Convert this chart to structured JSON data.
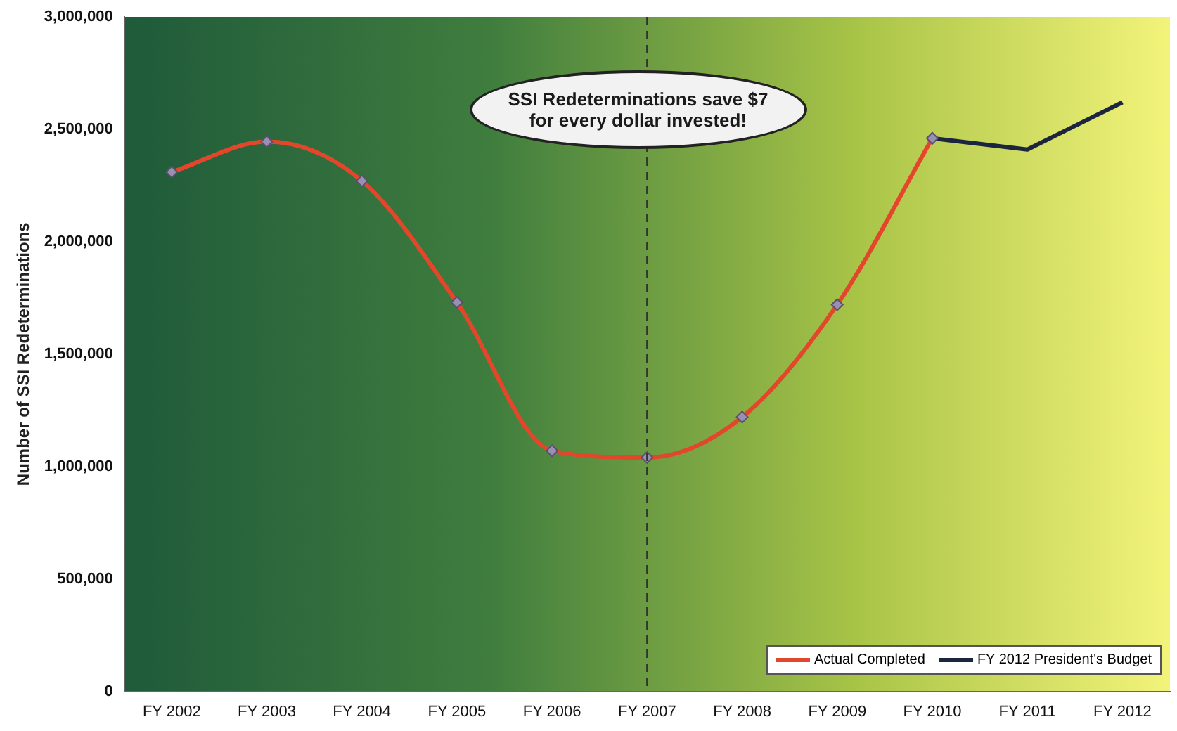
{
  "chart_data": {
    "type": "line",
    "ylabel": "Number of SSI Redeterminations",
    "categories": [
      "FY 2002",
      "FY 2003",
      "FY 2004",
      "FY 2005",
      "FY 2006",
      "FY 2007",
      "FY 2008",
      "FY 2009",
      "FY 2010",
      "FY 2011",
      "FY 2012"
    ],
    "series": [
      {
        "name": "Actual Completed",
        "color": "#e2472b",
        "marker": "diamond",
        "values": [
          2310000,
          2445000,
          2270000,
          1730000,
          1070000,
          1040000,
          1220000,
          1720000,
          2460000,
          null,
          null
        ]
      },
      {
        "name": "FY 2012 President's Budget",
        "color": "#1c2540",
        "marker": "none",
        "values": [
          null,
          null,
          null,
          null,
          null,
          null,
          null,
          null,
          2460000,
          2410000,
          2620000
        ]
      }
    ],
    "ylim": [
      0,
      3000000
    ],
    "yticks": [
      0,
      {
        "value": 500000,
        "label": "500,000"
      },
      {
        "value": 1000000,
        "label": "1,000,000"
      },
      {
        "value": 1500000,
        "label": "1,500,000"
      },
      {
        "value": 2000000,
        "label": "2,000,000"
      },
      {
        "value": 2500000,
        "label": "2,500,000"
      },
      {
        "value": 3000000,
        "label": "3,000,000"
      }
    ],
    "grid": false,
    "legend": "bottom right",
    "ref_lines": [
      {
        "axis": "x",
        "value": "FY 2007",
        "color": "#333333",
        "line_style": "dashed"
      }
    ],
    "annotations": [
      "SSI Redeterminations save $7 for every dollar invested!"
    ]
  }
}
